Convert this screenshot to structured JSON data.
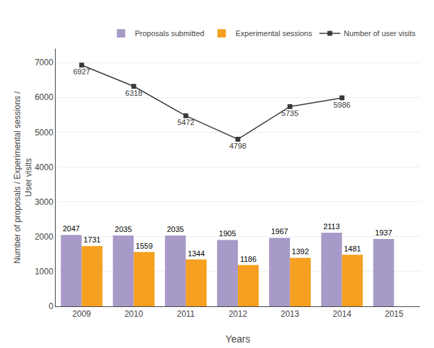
{
  "chart_data": {
    "type": "bar",
    "xlabel": "Years",
    "ylabel": "Number of proposals / Experimental sessions /\nUser visits",
    "categories": [
      "2009",
      "2010",
      "2011",
      "2012",
      "2013",
      "2014",
      "2015"
    ],
    "series": [
      {
        "name": "Proposals submitted",
        "type": "bar",
        "color": "#a89ac8",
        "values": [
          2047,
          2035,
          2035,
          1905,
          1967,
          2113,
          1937
        ]
      },
      {
        "name": "Experimental sessions",
        "type": "bar",
        "color": "#f5a020",
        "values": [
          1731,
          1559,
          1344,
          1186,
          1392,
          1481,
          null
        ]
      },
      {
        "name": "Number of user visits",
        "type": "line",
        "color": "#3a3a3a",
        "marker": "square",
        "values": [
          6927,
          6318,
          5472,
          4798,
          5735,
          5986,
          null
        ]
      }
    ],
    "ylim": [
      0,
      7400
    ],
    "yticks": [
      0,
      1000,
      2000,
      3000,
      4000,
      5000,
      6000,
      7000
    ],
    "grid": true,
    "data_labels": true,
    "legend": "upper right"
  }
}
